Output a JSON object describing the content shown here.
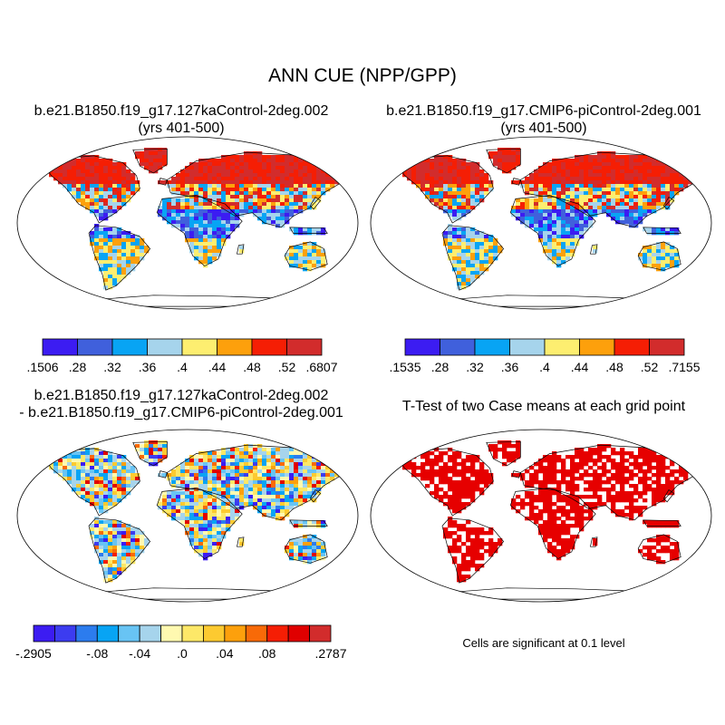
{
  "title": "ANN CUE (NPP/GPP)",
  "panels": [
    {
      "id": "p1",
      "title_line1": "b.e21.B1850.f19_g17.127kaControl-2deg.002",
      "title_line2": "(yrs 401-500)"
    },
    {
      "id": "p2",
      "title_line1": "b.e21.B1850.f19_g17.CMIP6-piControl-2deg.001",
      "title_line2": "(yrs 401-500)"
    },
    {
      "id": "p3",
      "title_line1": "b.e21.B1850.f19_g17.127kaControl-2deg.002",
      "title_line2": "- b.e21.B1850.f19_g17.CMIP6-piControl-2deg.001"
    },
    {
      "id": "p4",
      "title_line1": "T-Test of two Case means at each grid point",
      "note": "Cells are significant at 0.1 level"
    }
  ],
  "colorbars": [
    {
      "panel": "p1",
      "colors": [
        "#3c1cf2",
        "#4060dc",
        "#08a4f4",
        "#a6d4ec",
        "#fdee70",
        "#fda00c",
        "#f51e04",
        "#d22c2c"
      ],
      "labels": [
        ".1506",
        ".28",
        ".32",
        ".36",
        ".4",
        ".44",
        ".48",
        ".52",
        ".6807"
      ]
    },
    {
      "panel": "p2",
      "colors": [
        "#3c1cf2",
        "#4060dc",
        "#08a4f4",
        "#a6d4ec",
        "#fdee70",
        "#fda00c",
        "#f51e04",
        "#d22c2c"
      ],
      "labels": [
        ".1535",
        ".28",
        ".32",
        ".36",
        ".4",
        ".44",
        ".48",
        ".52",
        ".7155"
      ]
    },
    {
      "panel": "p3",
      "colors": [
        "#3c1cf2",
        "#3c3cf0",
        "#2c7cee",
        "#08a4f4",
        "#68c4f4",
        "#a6d4ec",
        "#fff9b0",
        "#fde868",
        "#fdca30",
        "#fda00c",
        "#f86a08",
        "#f51e04",
        "#e00000",
        "#d22c2c"
      ],
      "labels": [
        "-.2905",
        "-.08",
        "-.04",
        ".0",
        ".04",
        ".08",
        ".2787"
      ],
      "label_positions": [
        0,
        3,
        5,
        7,
        9,
        11,
        14
      ]
    }
  ],
  "significance_color": "#e60000"
}
